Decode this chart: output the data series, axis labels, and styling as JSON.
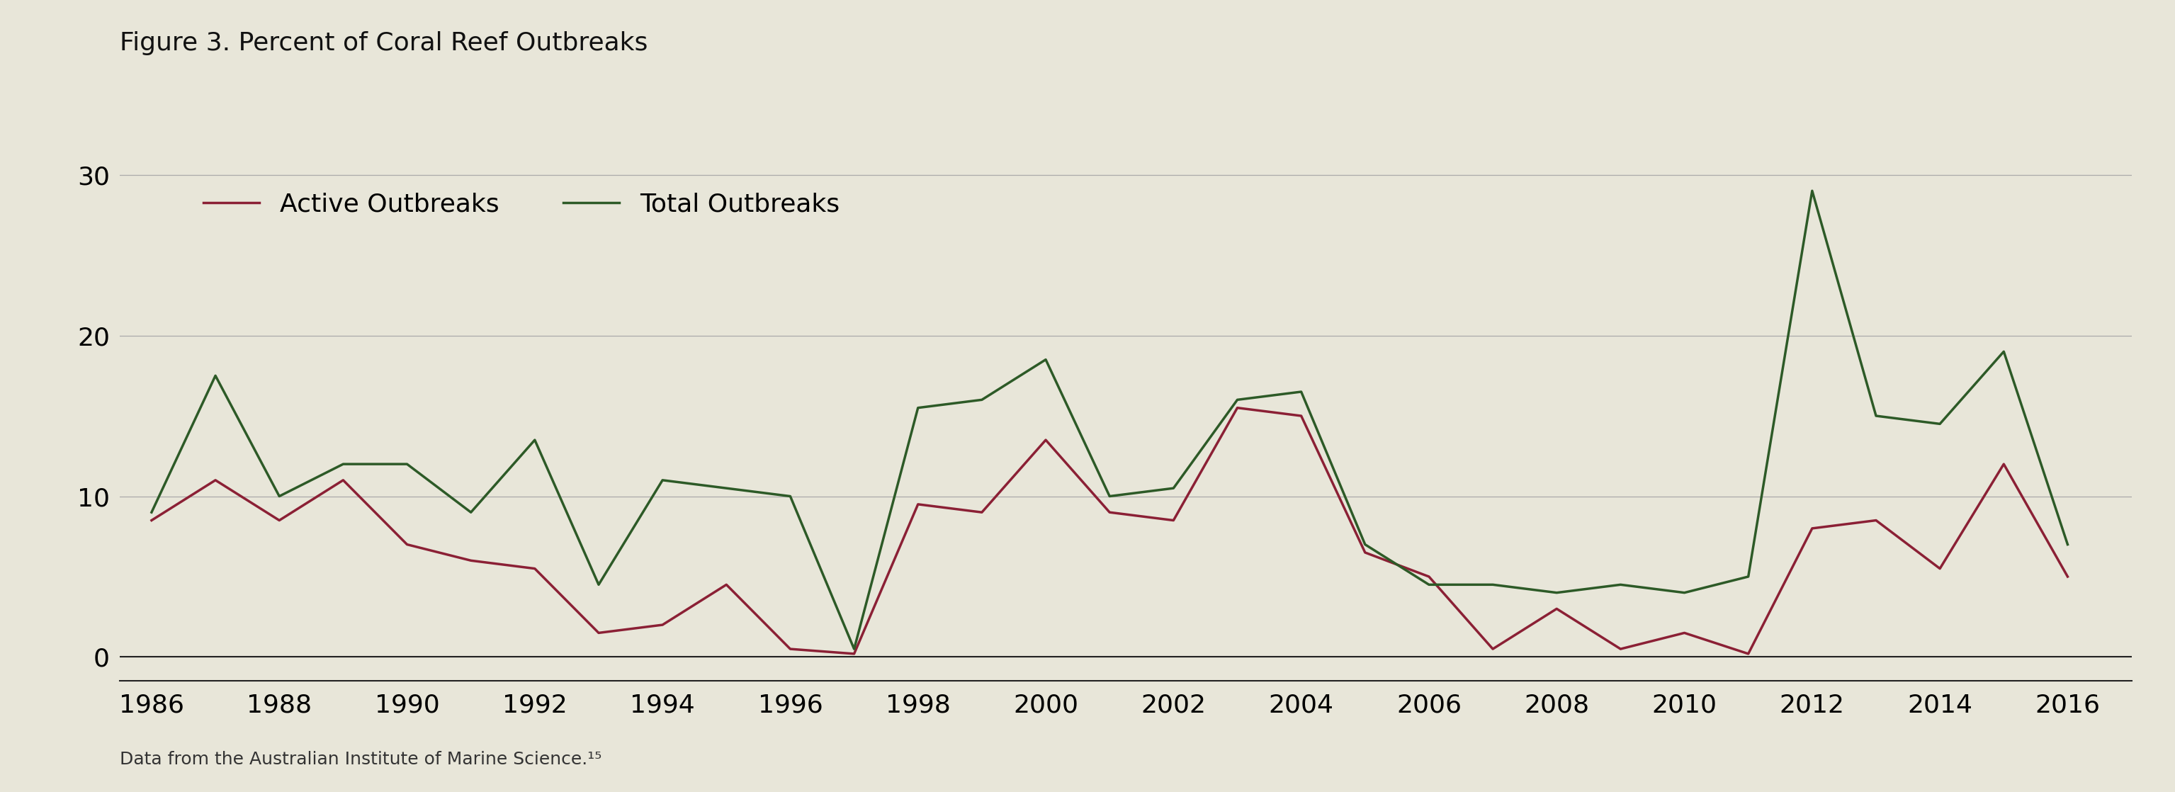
{
  "title": "Figure 3. Percent of Coral Reef Outbreaks",
  "footnote": "Data from the Australian Institute of Marine Science.¹⁵",
  "background_color": "#e8e6d9",
  "active_color": "#8b2035",
  "total_color": "#2d5a27",
  "line_width": 2.5,
  "legend_labels": [
    "Active Outbreaks",
    "Total Outbreaks"
  ],
  "years": [
    1986,
    1987,
    1988,
    1989,
    1990,
    1991,
    1992,
    1993,
    1994,
    1995,
    1996,
    1997,
    1998,
    1999,
    2000,
    2001,
    2002,
    2003,
    2004,
    2005,
    2006,
    2007,
    2008,
    2009,
    2010,
    2011,
    2012,
    2013,
    2014,
    2015,
    2016
  ],
  "active": [
    8.5,
    11.0,
    8.5,
    11.0,
    7.0,
    6.0,
    5.5,
    1.5,
    2.0,
    4.5,
    0.5,
    0.2,
    9.5,
    9.0,
    13.5,
    9.0,
    8.5,
    15.5,
    15.0,
    6.5,
    5.0,
    0.5,
    3.0,
    0.5,
    1.5,
    0.2,
    8.0,
    8.5,
    5.5,
    12.0,
    5.0
  ],
  "total": [
    9.0,
    17.5,
    10.0,
    12.0,
    12.0,
    9.0,
    13.5,
    4.5,
    11.0,
    10.5,
    10.0,
    0.5,
    15.5,
    16.0,
    18.5,
    10.0,
    10.5,
    16.0,
    16.5,
    7.0,
    4.5,
    4.5,
    4.0,
    4.5,
    4.0,
    5.0,
    29.0,
    15.0,
    14.5,
    19.0,
    7.0
  ],
  "yticks": [
    0,
    10,
    20,
    30
  ],
  "xticks": [
    1986,
    1988,
    1990,
    1992,
    1994,
    1996,
    1998,
    2000,
    2002,
    2004,
    2006,
    2008,
    2010,
    2012,
    2014,
    2016
  ],
  "ylim": [
    -1.5,
    32
  ],
  "xlim": [
    1985.5,
    2017.0
  ],
  "title_fontsize": 26,
  "tick_fontsize": 26,
  "legend_fontsize": 26,
  "footnote_fontsize": 18
}
